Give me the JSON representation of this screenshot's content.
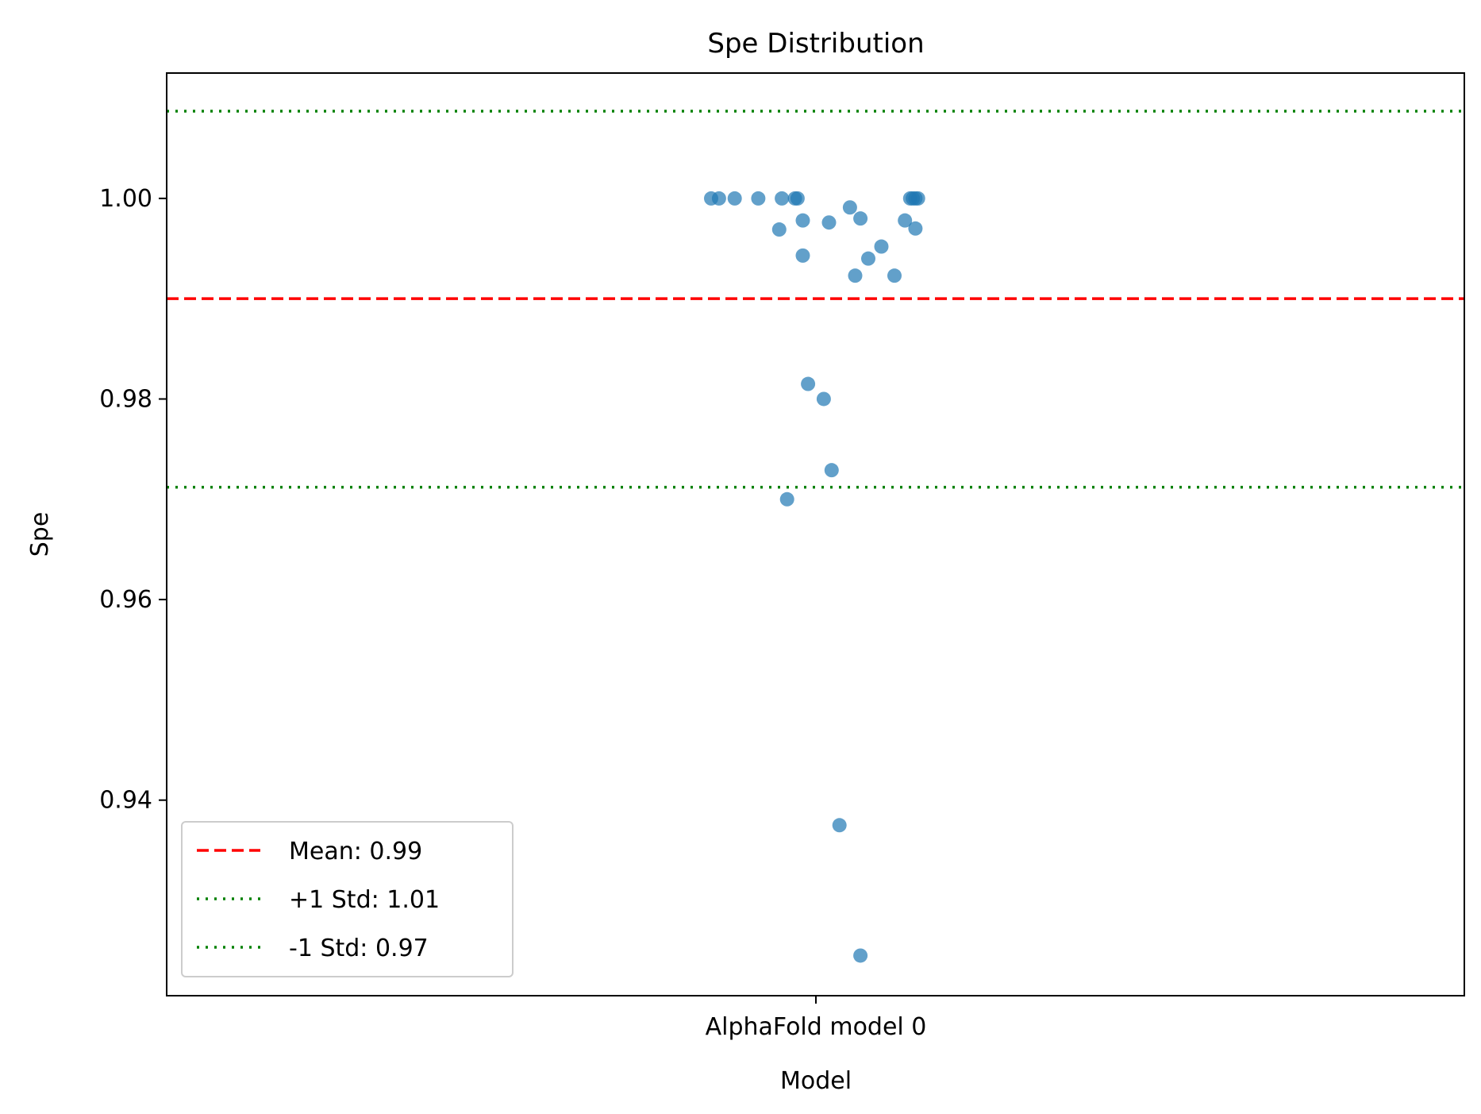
{
  "chart_data": {
    "type": "scatter",
    "title": "Spe Distribution",
    "xlabel": "Model",
    "ylabel": "Spe",
    "categories": [
      "AlphaFold model 0"
    ],
    "ylim": [
      0.9205,
      1.0125
    ],
    "yticks": [
      "0.94",
      "0.96",
      "0.98",
      "1.00"
    ],
    "grid": false,
    "legend_position": "lower-left",
    "colors": {
      "points": "#1f77b4",
      "mean": "#ff0000",
      "std": "#008000",
      "axes": "#000000"
    },
    "series": [
      {
        "category": "AlphaFold model 0",
        "values": [
          1.0,
          1.0,
          1.0,
          1.0,
          1.0,
          1.0,
          1.0,
          1.0,
          1.0,
          1.0,
          1.0,
          0.9991,
          0.998,
          0.9978,
          0.9978,
          0.9976,
          0.997,
          0.9969,
          0.9952,
          0.9943,
          0.994,
          0.9923,
          0.9923,
          0.9815,
          0.98,
          0.9729,
          0.97,
          0.9375,
          0.9245
        ],
        "jitter": [
          -0.4,
          -0.37,
          -0.31,
          -0.22,
          -0.13,
          -0.08,
          -0.07,
          0.36,
          0.37,
          0.38,
          0.39,
          0.13,
          0.17,
          -0.05,
          0.34,
          0.05,
          0.38,
          -0.14,
          0.25,
          -0.05,
          0.2,
          0.15,
          0.3,
          -0.03,
          0.03,
          0.06,
          -0.11,
          0.09,
          0.17
        ]
      }
    ],
    "reference_lines": [
      {
        "label": "Mean: 0.99",
        "value": 0.99,
        "style": "dashed",
        "color": "#ff0000"
      },
      {
        "label": "+1 Std: 1.01",
        "value": 1.0087,
        "style": "dotted",
        "color": "#008000"
      },
      {
        "label": "-1 Std: 0.97",
        "value": 0.9712,
        "style": "dotted",
        "color": "#008000"
      }
    ]
  }
}
